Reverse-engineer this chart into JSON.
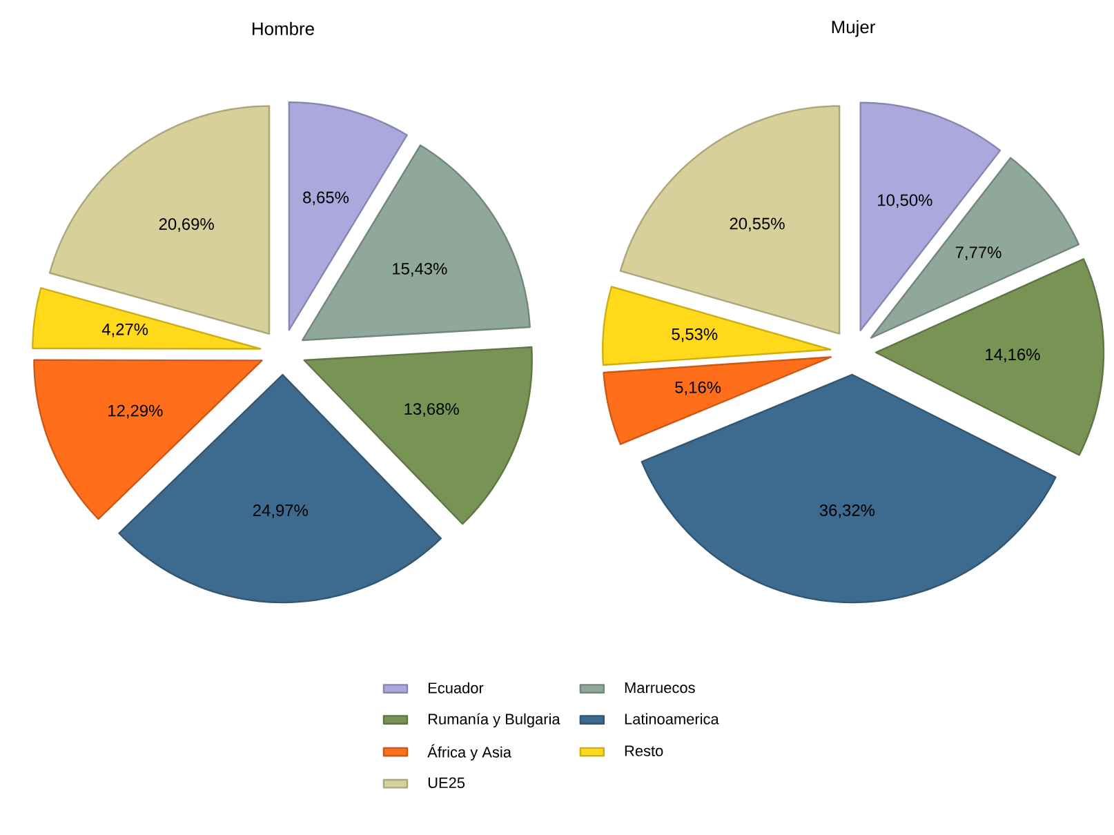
{
  "chart_data": [
    {
      "type": "pie",
      "title": "Hombre",
      "legend": "bottom",
      "categories": [
        "Ecuador",
        "Marruecos",
        "Rumanía y Bulgaria",
        "Latinoamerica",
        "África y Asia",
        "Resto",
        "UE25"
      ],
      "values": [
        8.65,
        15.43,
        13.68,
        24.97,
        12.29,
        4.27,
        20.69
      ],
      "value_labels": [
        "8,65%",
        "15,43%",
        "13,68%",
        "24,97%",
        "12,29%",
        "4,27%",
        "20,69%"
      ],
      "colors": [
        "#aaa8dc",
        "#8fa89b",
        "#779455",
        "#3d6b8f",
        "#ff6e1a",
        "#ffd91a",
        "#d8d09a"
      ]
    },
    {
      "type": "pie",
      "title": "Mujer",
      "categories": [
        null,
        null,
        null,
        null,
        null,
        null,
        null
      ],
      "values": [
        10.5,
        7.77,
        14.16,
        36.32,
        5.16,
        5.53,
        20.55
      ],
      "value_labels": [
        "10,50%",
        "7,77%",
        "14,16%",
        "36,32%",
        "5,16%",
        "5,53%",
        "20,55%"
      ],
      "colors": [
        "#aaa8dc",
        "#8fa89b",
        "#779455",
        "#3d6b8f",
        "#ff6e1a",
        "#ffd91a",
        "#d8d09a"
      ]
    }
  ]
}
